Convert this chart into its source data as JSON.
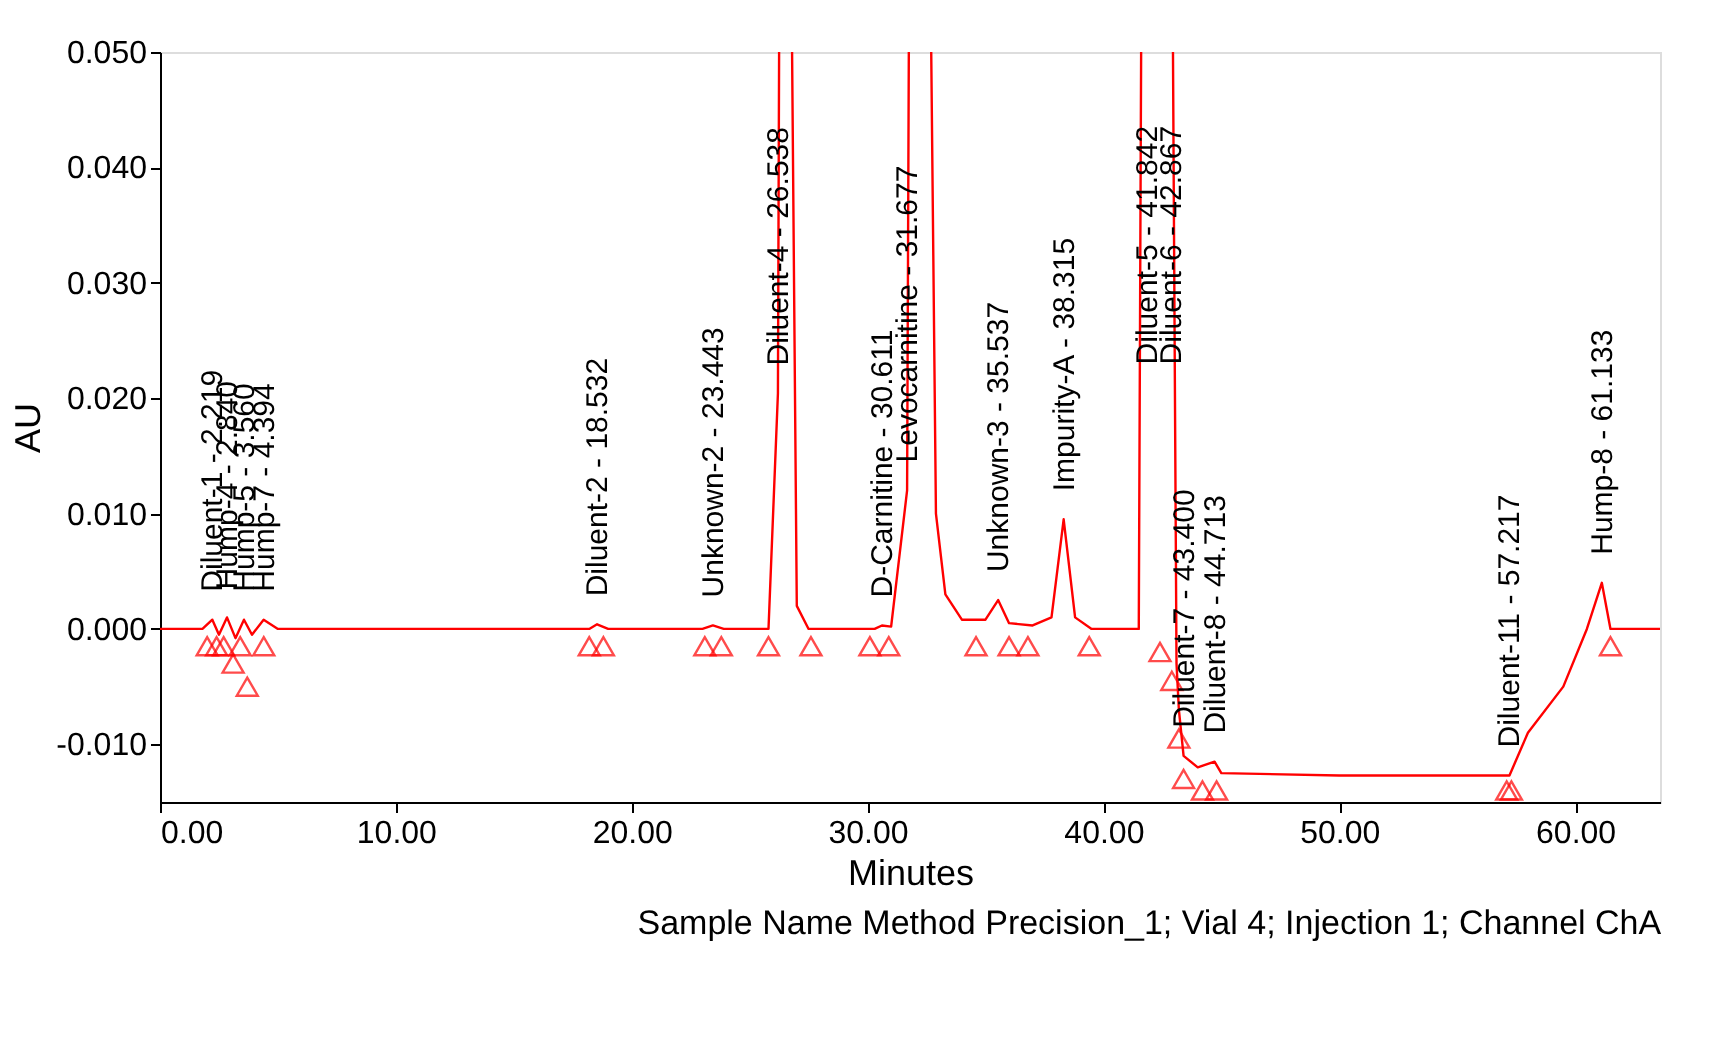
{
  "chart_data": {
    "type": "line",
    "xlabel": "Minutes",
    "ylabel": "AU",
    "xlim": [
      0,
      63.6
    ],
    "ylim": [
      -0.015,
      0.05
    ],
    "xticks": [
      {
        "value": 0,
        "label": "0.00"
      },
      {
        "value": 10,
        "label": "10.00"
      },
      {
        "value": 20,
        "label": "20.00"
      },
      {
        "value": 30,
        "label": "30.00"
      },
      {
        "value": 40,
        "label": "40.00"
      },
      {
        "value": 50,
        "label": "50.00"
      },
      {
        "value": 60,
        "label": "60.00"
      }
    ],
    "yticks": [
      {
        "value": -0.01,
        "label": "-0.010"
      },
      {
        "value": 0,
        "label": "0.000"
      },
      {
        "value": 0.01,
        "label": "0.010"
      },
      {
        "value": 0.02,
        "label": "0.020"
      },
      {
        "value": 0.03,
        "label": "0.030"
      },
      {
        "value": 0.04,
        "label": "0.040"
      },
      {
        "value": 0.05,
        "label": "0.050"
      }
    ],
    "grid": false,
    "series": [
      {
        "line_style": "solid",
        "color": "#ff0000",
        "x": [
          0,
          1.8,
          2.219,
          2.5,
          2.84,
          3.2,
          3.56,
          3.9,
          4.394,
          5,
          18.2,
          18.532,
          19,
          23.0,
          23.443,
          23.9,
          25.8,
          26.2,
          26.25
        ],
        "values": [
          0,
          0,
          0.0008,
          -0.0005,
          0.001,
          -0.0008,
          0.0008,
          -0.0005,
          0.0008,
          0,
          0,
          0.0004,
          0,
          0,
          0.0003,
          0,
          0,
          0.0204,
          0.05
        ]
      },
      {
        "line_style": "solid",
        "color": "#ff0000",
        "x": [
          26.8,
          27.0,
          27.5,
          30.3,
          30.611,
          31.0,
          31.677,
          31.75
        ],
        "values": [
          0.05,
          0.002,
          0,
          0,
          0.0003,
          0.0002,
          0.012,
          0.05
        ]
      },
      {
        "line_style": "solid",
        "color": "#ff0000",
        "x": [
          32.7,
          32.9,
          33.3,
          34,
          35,
          35.537,
          36,
          37,
          37.8,
          38.315,
          38.8,
          39.5,
          41.5,
          41.6
        ],
        "values": [
          0.05,
          0.01,
          0.003,
          0.0008,
          0.0008,
          0.0025,
          0.0005,
          0.0003,
          0.001,
          0.0095,
          0.001,
          0,
          0,
          0.05
        ]
      },
      {
        "line_style": "solid",
        "color": "#ff0000",
        "x": [
          42.95,
          43.1,
          43.2,
          43.4,
          44,
          44.713,
          45,
          50,
          57.217,
          58,
          59.5,
          60.5,
          61.133,
          61.5,
          62,
          63.6
        ],
        "values": [
          0.05,
          -0.003,
          -0.007,
          -0.011,
          -0.012,
          -0.0115,
          -0.0125,
          -0.0127,
          -0.0127,
          -0.009,
          -0.005,
          0,
          0.004,
          0,
          0,
          0
        ]
      },
      {
        "type": "scatter",
        "marker": "triangle",
        "color": "#ff0000",
        "x": [
          2.0,
          2.4,
          2.7,
          3.1,
          3.4,
          3.7,
          4.4,
          18.2,
          18.8,
          23.1,
          23.8,
          25.8,
          27.6,
          30.1,
          30.9,
          34.6,
          36.0,
          36.8,
          39.4,
          42.4,
          42.9,
          43.2,
          43.4,
          44.2,
          44.8,
          57.1,
          57.3,
          61.5
        ],
        "values": [
          -0.0015,
          -0.0015,
          -0.0015,
          -0.003,
          -0.0015,
          -0.005,
          -0.0015,
          -0.0015,
          -0.0015,
          -0.0015,
          -0.0015,
          -0.0015,
          -0.0015,
          -0.0015,
          -0.0015,
          -0.0015,
          -0.0015,
          -0.0015,
          -0.0015,
          -0.002,
          -0.0045,
          -0.0095,
          -0.013,
          -0.014,
          -0.014,
          -0.014,
          -0.014,
          -0.0015
        ]
      }
    ],
    "annotations": [
      {
        "text": "Diluent-1 - 2.219",
        "x": 2.219,
        "y": 0.0008
      },
      {
        "text": "Hump-4 - 2.840",
        "x": 2.84,
        "y": 0.001
      },
      {
        "text": "Hump-5 - 3.560",
        "x": 3.56,
        "y": 0.0008
      },
      {
        "text": "Hump-7 - 4.394",
        "x": 4.394,
        "y": 0.0008
      },
      {
        "text": "Diluent-2 - 18.532",
        "x": 18.532,
        "y": 0.0004
      },
      {
        "text": "Unknown-2 - 23.443",
        "x": 23.443,
        "y": 0.0003
      },
      {
        "text": "Diluent-4 - 26.538",
        "x": 26.2,
        "y": 0.0204
      },
      {
        "text": "D-Carnitine - 30.611",
        "x": 30.611,
        "y": 0.0003
      },
      {
        "text": "Levocarnitine - 31.677",
        "x": 31.677,
        "y": 0.012
      },
      {
        "text": "Unknown-3 - 35.537",
        "x": 35.537,
        "y": 0.0025
      },
      {
        "text": "Impurity-A - 38.315",
        "x": 38.315,
        "y": 0.0095
      },
      {
        "text": "Diluent-5 - 41.842",
        "x": 41.842,
        "y": 0.0205
      },
      {
        "text": "Diluent-6 - 42.867",
        "x": 42.867,
        "y": 0.0205
      },
      {
        "text": "Diluent-7 - 43.400",
        "x": 43.4,
        "y": -0.011
      },
      {
        "text": "Diluent-8 - 44.713",
        "x": 44.713,
        "y": -0.0115
      },
      {
        "text": "Diluent-11 - 57.217",
        "x": 57.217,
        "y": -0.0127
      },
      {
        "text": "Hump-8 - 61.133",
        "x": 61.133,
        "y": 0.004
      },
      "Sample Name Method Precision_1; Vial 4; Injection 1; Channel ChA"
    ]
  }
}
